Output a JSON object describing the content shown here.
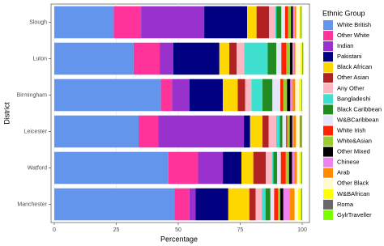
{
  "chart_data": {
    "type": "stacked_bar_horizontal",
    "x_label": "Percentage",
    "y_label": "District",
    "legend_title": "Ethnic Group",
    "categories": [
      "Slough",
      "Luton",
      "Birmingham",
      "Leicester",
      "Watford",
      "Manchester"
    ],
    "xlim": [
      0,
      100
    ],
    "xticks": [
      0,
      25,
      50,
      75,
      100
    ],
    "grid": true,
    "legend": "right",
    "series": [
      {
        "name": "White British",
        "color": "#6495ED",
        "values": [
          24,
          32,
          43,
          34,
          46,
          48.5
        ]
      },
      {
        "name": "Other White",
        "color": "#FF3399",
        "values": [
          11,
          10.5,
          4.5,
          8,
          12,
          6
        ]
      },
      {
        "name": "Indian",
        "color": "#9932CC",
        "values": [
          25.5,
          5.5,
          7,
          34.5,
          10,
          2.5
        ]
      },
      {
        "name": "Pakistani",
        "color": "#000080",
        "values": [
          17.3,
          18.6,
          13.5,
          2.5,
          7.5,
          13.2
        ]
      },
      {
        "name": "Black African",
        "color": "#FFD700",
        "values": [
          3.8,
          4,
          6,
          5,
          4.8,
          8.5
        ]
      },
      {
        "name": "Other Asian",
        "color": "#B22222",
        "values": [
          5,
          3,
          3,
          2.5,
          5,
          2.5
        ]
      },
      {
        "name": "Any Other",
        "color": "#FFB6C1",
        "values": [
          2.5,
          3,
          2.5,
          3,
          2.5,
          2.5
        ]
      },
      {
        "name": "Bangladeshi",
        "color": "#40E0D0",
        "values": [
          0.5,
          9.5,
          4.5,
          1.5,
          0.6,
          1.5
        ]
      },
      {
        "name": "Black Caribbean",
        "color": "#228B22",
        "values": [
          2,
          3.5,
          4,
          1,
          1.5,
          2
        ]
      },
      {
        "name": "W&BCaribbean",
        "color": "#E6E6FA",
        "values": [
          1.5,
          2,
          3.2,
          1.5,
          1.5,
          1.5
        ]
      },
      {
        "name": "White Irish",
        "color": "#FF2400",
        "values": [
          1.2,
          2,
          1.2,
          0.5,
          2,
          1.5
        ]
      },
      {
        "name": "White&Asian",
        "color": "#9ACD32",
        "values": [
          1.2,
          1.5,
          1.5,
          1,
          1.3,
          1
        ]
      },
      {
        "name": "Other Mixed",
        "color": "#000000",
        "values": [
          0.8,
          1,
          1.3,
          1,
          1.2,
          1.2
        ]
      },
      {
        "name": "Chinese",
        "color": "#EE82EE",
        "values": [
          0.7,
          0.6,
          0.8,
          0.5,
          1,
          2.5
        ]
      },
      {
        "name": "Arab",
        "color": "#FF8C00",
        "values": [
          0.6,
          0.6,
          1.2,
          1,
          1,
          2
        ]
      },
      {
        "name": "Other Black",
        "color": "#FFFACD",
        "values": [
          1.2,
          2,
          1.5,
          1.2,
          1,
          1.5
        ]
      },
      {
        "name": "W&BAfrican",
        "color": "#FFFF00",
        "values": [
          0.6,
          0.8,
          1,
          0.5,
          0.7,
          1.2
        ]
      },
      {
        "name": "Roma",
        "color": "#696969",
        "values": [
          0.3,
          0.3,
          0.2,
          0.6,
          0.3,
          0.3
        ]
      },
      {
        "name": "GylrTraveller",
        "color": "#7CFC00",
        "values": [
          0.1,
          0.1,
          0.1,
          0.1,
          0.1,
          0.1
        ]
      }
    ]
  }
}
